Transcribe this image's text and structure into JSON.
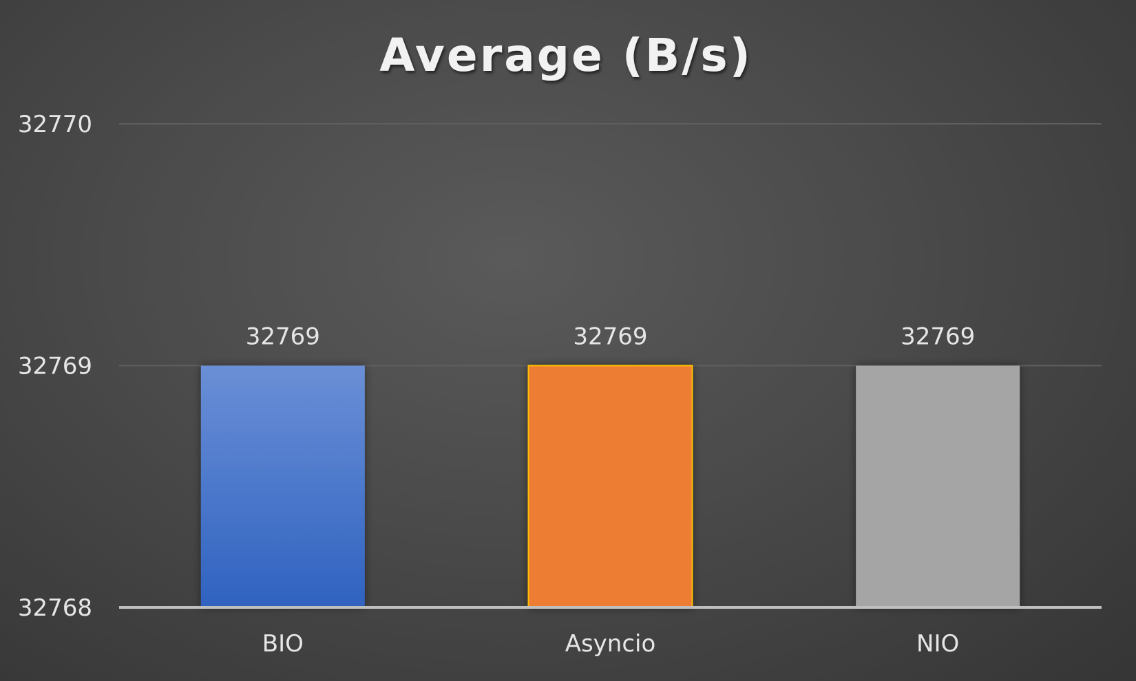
{
  "chart_data": {
    "type": "bar",
    "title": "Average (B/s)",
    "categories": [
      "BIO",
      "Asyncio",
      "NIO"
    ],
    "values": [
      32769,
      32769,
      32769
    ],
    "data_labels": [
      "32769",
      "32769",
      "32769"
    ],
    "xlabel": "",
    "ylabel": "",
    "ylim": [
      32768,
      32770
    ],
    "y_ticks": [
      32768,
      32769,
      32770
    ],
    "y_tick_labels": [
      "32768",
      "32769",
      "32770"
    ],
    "grid": true,
    "legend": "none",
    "colors": {
      "BIO": "#4472c4",
      "Asyncio": "#ed7d31",
      "NIO": "#a5a5a5",
      "Asyncio_outline": "#ffc000",
      "gridline": "#5e5e5e",
      "axis": "#bfbfbf",
      "text": "#e6e6e6",
      "title": "#f2f2f2"
    }
  }
}
